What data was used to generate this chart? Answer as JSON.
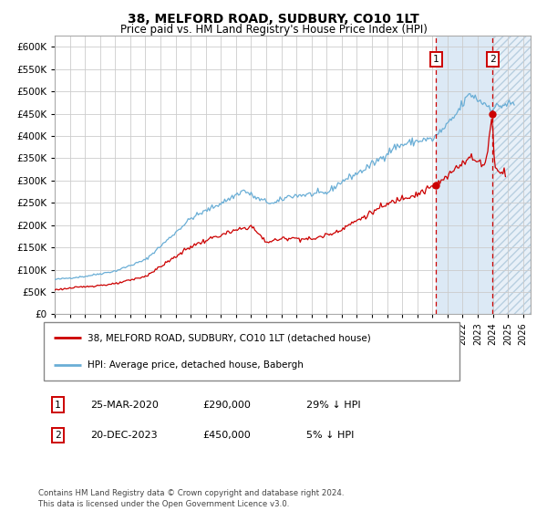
{
  "title": "38, MELFORD ROAD, SUDBURY, CO10 1LT",
  "subtitle": "Price paid vs. HM Land Registry's House Price Index (HPI)",
  "ylim": [
    0,
    625000
  ],
  "yticks": [
    0,
    50000,
    100000,
    150000,
    200000,
    250000,
    300000,
    350000,
    400000,
    450000,
    500000,
    550000,
    600000
  ],
  "xlim_start": 1995.0,
  "xlim_end": 2026.5,
  "hpi_color": "#6aaed6",
  "price_color": "#cc0000",
  "marker1_date_num": 2020.23,
  "marker1_price": 290000,
  "marker2_date_num": 2023.97,
  "marker2_price": 450000,
  "shade_start": 2020.23,
  "shade_end": 2023.97,
  "shade_color": "#dce9f5",
  "hatch_start": 2023.97,
  "hatch_end": 2026.5,
  "hatch_color": "#e8f0f8",
  "vline_color": "#cc0000",
  "legend_label1": "38, MELFORD ROAD, SUDBURY, CO10 1LT (detached house)",
  "legend_label2": "HPI: Average price, detached house, Babergh",
  "annotation1_num": "1",
  "annotation1_label": "25-MAR-2020",
  "annotation1_price_str": "£290,000",
  "annotation1_pct": "29% ↓ HPI",
  "annotation2_num": "2",
  "annotation2_label": "20-DEC-2023",
  "annotation2_price_str": "£450,000",
  "annotation2_pct": "5% ↓ HPI",
  "footer": "Contains HM Land Registry data © Crown copyright and database right 2024.\nThis data is licensed under the Open Government Licence v3.0.",
  "background_color": "#ffffff",
  "grid_color": "#cccccc",
  "title_fontsize": 10,
  "subtitle_fontsize": 8.5
}
